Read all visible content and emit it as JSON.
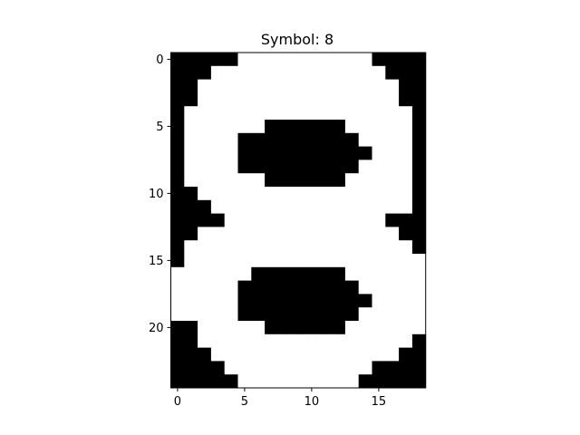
{
  "chart_data": {
    "type": "heatmap",
    "title": "Symbol: 8",
    "colormap": {
      "0": "#000000",
      "1": "#ffffff"
    },
    "xlim": [
      -0.5,
      18.5
    ],
    "ylim": [
      24.5,
      -0.5
    ],
    "xticks": [
      0,
      5,
      10,
      15
    ],
    "yticks": [
      0,
      5,
      10,
      15,
      20
    ],
    "grid": false,
    "rows": [
      "0000011111111110000",
      "0001111111111111000",
      "0011111111111111100",
      "0011111111111111100",
      "0111111111111111110",
      "0111111000000111110",
      "0111100000000011110",
      "0111100000000001110",
      "0111100000000011110",
      "0111111000000111110",
      "0011111111111111110",
      "0001111111111111110",
      "0000111111111111000",
      "0011111111111111100",
      "0111111111111111110",
      "0111111111111111111",
      "1111110000000111111",
      "1111100000000011111",
      "1111100000000001111",
      "1111100000000011111",
      "0011111000000111111",
      "0011111111111111110",
      "0001111111111111100",
      "0000111111111110000",
      "0000011111111100000"
    ]
  }
}
